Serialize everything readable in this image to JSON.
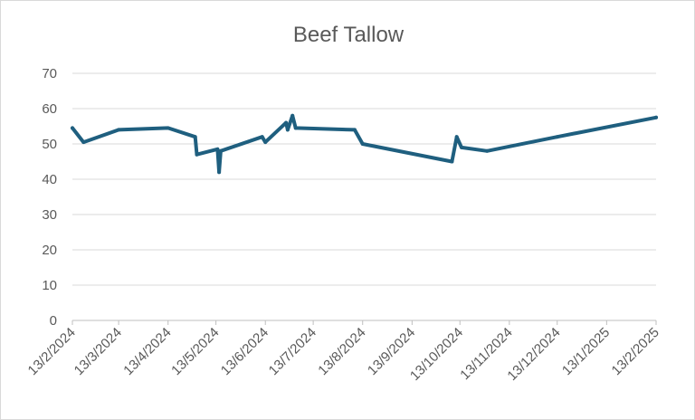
{
  "chart_data": {
    "type": "line",
    "title": "Beef Tallow",
    "xlabel": "",
    "ylabel": "",
    "ylim": [
      0,
      70
    ],
    "yticks": [
      0,
      10,
      20,
      30,
      40,
      50,
      60,
      70
    ],
    "x_axis_type": "date",
    "x_tick_labels": [
      "13/2/2024",
      "13/3/2024",
      "13/4/2024",
      "13/5/2024",
      "13/6/2024",
      "13/7/2024",
      "13/8/2024",
      "13/9/2024",
      "13/10/2024",
      "13/11/2024",
      "13/12/2024",
      "13/1/2025",
      "13/2/2025"
    ],
    "grid": true,
    "legend": "none",
    "series": [
      {
        "color": "#1f5f7f",
        "points": [
          {
            "x": "2024-02-13",
            "y": 54.5
          },
          {
            "x": "2024-02-20",
            "y": 50.5
          },
          {
            "x": "2024-03-13",
            "y": 54
          },
          {
            "x": "2024-04-13",
            "y": 54.5
          },
          {
            "x": "2024-04-30",
            "y": 52
          },
          {
            "x": "2024-05-01",
            "y": 47
          },
          {
            "x": "2024-05-14",
            "y": 48.5
          },
          {
            "x": "2024-05-15",
            "y": 42
          },
          {
            "x": "2024-05-16",
            "y": 48
          },
          {
            "x": "2024-06-11",
            "y": 52
          },
          {
            "x": "2024-06-13",
            "y": 50.5
          },
          {
            "x": "2024-06-26",
            "y": 56
          },
          {
            "x": "2024-06-27",
            "y": 54
          },
          {
            "x": "2024-06-30",
            "y": 58
          },
          {
            "x": "2024-07-02",
            "y": 54.5
          },
          {
            "x": "2024-08-08",
            "y": 54
          },
          {
            "x": "2024-08-13",
            "y": 50
          },
          {
            "x": "2024-10-08",
            "y": 45
          },
          {
            "x": "2024-10-11",
            "y": 52
          },
          {
            "x": "2024-10-14",
            "y": 49
          },
          {
            "x": "2024-10-30",
            "y": 48
          },
          {
            "x": "2024-12-13",
            "y": 52
          },
          {
            "x": "2025-02-13",
            "y": 57.5
          }
        ]
      }
    ]
  }
}
